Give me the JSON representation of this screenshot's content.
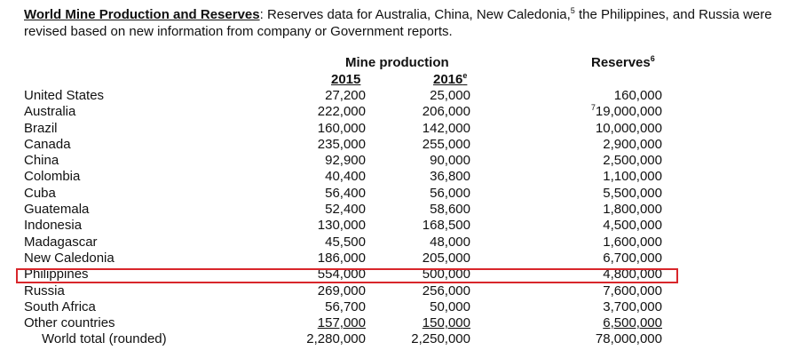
{
  "intro": {
    "bold": "World Mine Production and Reserves",
    "text_a": ": Reserves data for Australia, China, New Caledonia,",
    "sup_a": "5",
    "text_b": " the Philippines, and Russia were revised based on new information from company or Government reports."
  },
  "headers": {
    "mine_production": "Mine production",
    "reserves": "Reserves",
    "reserves_sup": "6",
    "y2015": "2015",
    "y2016": "2016",
    "y2016_sup": "e"
  },
  "rows": [
    {
      "country": "United States",
      "p2015": "27,200",
      "p2016": "25,000",
      "reserves": "160,000"
    },
    {
      "country": "Australia",
      "p2015": "222,000",
      "p2016": "206,000",
      "reserves": "19,000,000",
      "reserves_sup": "7"
    },
    {
      "country": "Brazil",
      "p2015": "160,000",
      "p2016": "142,000",
      "reserves": "10,000,000"
    },
    {
      "country": "Canada",
      "p2015": "235,000",
      "p2016": "255,000",
      "reserves": "2,900,000"
    },
    {
      "country": "China",
      "p2015": "92,900",
      "p2016": "90,000",
      "reserves": "2,500,000"
    },
    {
      "country": "Colombia",
      "p2015": "40,400",
      "p2016": "36,800",
      "reserves": "1,100,000"
    },
    {
      "country": "Cuba",
      "p2015": "56,400",
      "p2016": "56,000",
      "reserves": "5,500,000"
    },
    {
      "country": "Guatemala",
      "p2015": "52,400",
      "p2016": "58,600",
      "reserves": "1,800,000"
    },
    {
      "country": "Indonesia",
      "p2015": "130,000",
      "p2016": "168,500",
      "reserves": "4,500,000"
    },
    {
      "country": "Madagascar",
      "p2015": "45,500",
      "p2016": "48,000",
      "reserves": "1,600,000"
    },
    {
      "country": "New Caledonia",
      "p2015": "186,000",
      "p2016": "205,000",
      "reserves": "6,700,000"
    },
    {
      "country": "Philippines",
      "p2015": "554,000",
      "p2016": "500,000",
      "reserves": "4,800,000"
    },
    {
      "country": "Russia",
      "p2015": "269,000",
      "p2016": "256,000",
      "reserves": "7,600,000"
    },
    {
      "country": "South Africa",
      "p2015": "56,700",
      "p2016": "50,000",
      "reserves": "3,700,000"
    },
    {
      "country": "Other countries",
      "p2015": "157,000",
      "p2016": "150,000",
      "reserves": "6,500,000"
    }
  ],
  "total": {
    "country": "World total (rounded)",
    "p2015": "2,280,000",
    "p2016": "2,250,000",
    "reserves": "78,000,000"
  },
  "highlight_color": "#d8262b"
}
